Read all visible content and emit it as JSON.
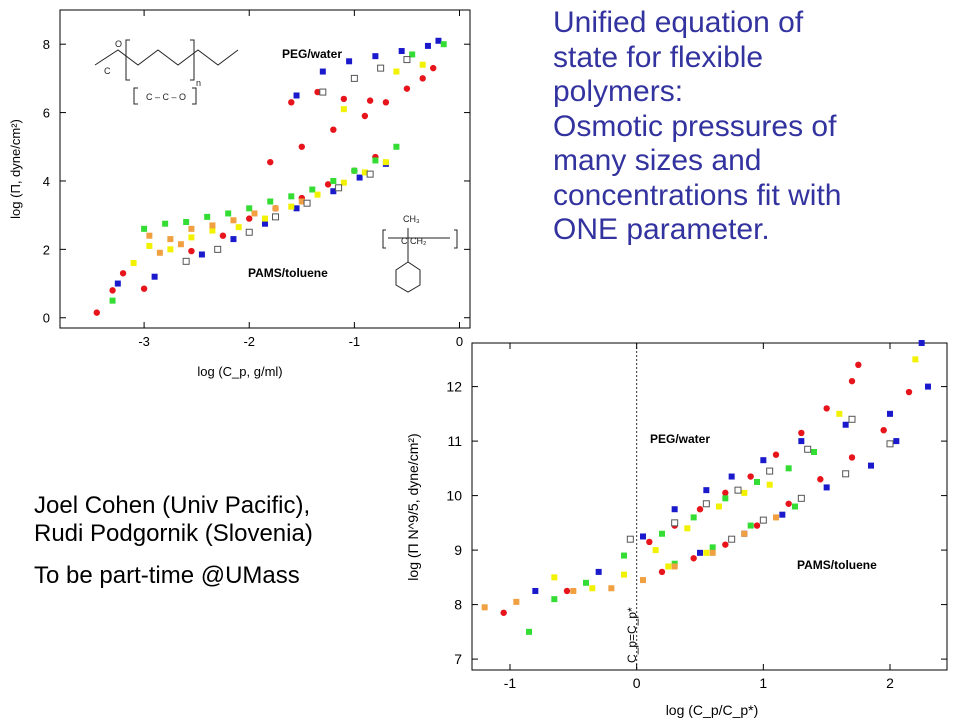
{
  "headline": {
    "lines": [
      "Unified equation of",
      "state for flexible",
      "polymers:",
      "Osmotic pressures of",
      "many sizes and",
      "concentrations fit with",
      "ONE parameter."
    ]
  },
  "credits": {
    "authors": "Joel Cohen (Univ Pacific), Rudi Podgornik (Slovenia)",
    "note": "To be part-time @UMass"
  },
  "colors": {
    "headline": "#3333a0",
    "red": "#e8141c",
    "blue": "#1a1acc",
    "green": "#33dd33",
    "yellow": "#f2f200",
    "orange": "#f0a040",
    "open_square": "#555555"
  },
  "chart_data": [
    {
      "type": "scatter",
      "title": "",
      "xlabel": "log (C_p, g/ml)",
      "ylabel": "log (Π, dyne/cm²)",
      "xlim": [
        -3.8,
        0.1
      ],
      "ylim": [
        -0.3,
        9
      ],
      "xticks": [
        "-3",
        "-2",
        "-1",
        "0"
      ],
      "yticks": [
        "0",
        "2",
        "4",
        "6",
        "8"
      ],
      "grid": false,
      "annotations": [
        "PEG/water",
        "PAMS/toluene"
      ],
      "molecule_labels": [
        "C",
        "O",
        "n",
        "C – C – O",
        "CH₃",
        "C CH₂"
      ],
      "series": [
        {
          "color": "red",
          "marker": "circle",
          "points": [
            [
              -3.45,
              0.15
            ],
            [
              -3.3,
              0.8
            ],
            [
              -3.2,
              1.3
            ],
            [
              -3.0,
              0.85
            ],
            [
              -2.55,
              1.95
            ],
            [
              -2.25,
              2.4
            ],
            [
              -2.0,
              2.9
            ],
            [
              -1.75,
              3.2
            ],
            [
              -1.5,
              3.5
            ],
            [
              -1.25,
              3.9
            ],
            [
              -1.0,
              4.3
            ],
            [
              -0.8,
              4.7
            ],
            [
              -1.8,
              4.55
            ],
            [
              -1.5,
              5.0
            ],
            [
              -1.2,
              5.5
            ],
            [
              -0.9,
              5.9
            ],
            [
              -0.7,
              6.3
            ],
            [
              -0.5,
              6.7
            ],
            [
              -0.35,
              7.0
            ],
            [
              -0.25,
              7.3
            ],
            [
              -1.6,
              6.3
            ],
            [
              -1.35,
              6.6
            ],
            [
              -1.1,
              6.4
            ],
            [
              -0.85,
              6.35
            ]
          ]
        },
        {
          "color": "blue",
          "marker": "square",
          "points": [
            [
              -3.25,
              1.0
            ],
            [
              -2.9,
              1.2
            ],
            [
              -2.45,
              1.85
            ],
            [
              -2.15,
              2.3
            ],
            [
              -1.85,
              2.75
            ],
            [
              -1.55,
              3.2
            ],
            [
              -1.2,
              3.7
            ],
            [
              -0.95,
              4.1
            ],
            [
              -0.7,
              4.5
            ],
            [
              -1.55,
              6.5
            ],
            [
              -1.3,
              7.2
            ],
            [
              -1.05,
              7.5
            ],
            [
              -0.8,
              7.65
            ],
            [
              -0.55,
              7.8
            ],
            [
              -0.3,
              7.95
            ],
            [
              -0.2,
              8.1
            ]
          ]
        },
        {
          "color": "green",
          "marker": "square",
          "points": [
            [
              -3.0,
              2.6
            ],
            [
              -2.8,
              2.75
            ],
            [
              -2.6,
              2.8
            ],
            [
              -2.4,
              2.95
            ],
            [
              -2.2,
              3.05
            ],
            [
              -2.0,
              3.2
            ],
            [
              -1.8,
              3.4
            ],
            [
              -1.6,
              3.55
            ],
            [
              -1.4,
              3.75
            ],
            [
              -1.2,
              4.0
            ],
            [
              -1.0,
              4.3
            ],
            [
              -0.8,
              4.6
            ],
            [
              -0.6,
              5.0
            ],
            [
              -3.3,
              0.5
            ],
            [
              -0.15,
              8.0
            ],
            [
              -0.45,
              7.7
            ],
            [
              -1.0,
              7.0
            ]
          ]
        },
        {
          "color": "yellow",
          "marker": "square",
          "points": [
            [
              -3.1,
              1.6
            ],
            [
              -2.95,
              2.1
            ],
            [
              -2.75,
              2.0
            ],
            [
              -2.55,
              2.35
            ],
            [
              -2.35,
              2.55
            ],
            [
              -2.1,
              2.65
            ],
            [
              -1.85,
              2.9
            ],
            [
              -1.6,
              3.25
            ],
            [
              -1.35,
              3.6
            ],
            [
              -1.1,
              3.95
            ],
            [
              -0.9,
              4.25
            ],
            [
              -0.7,
              4.55
            ],
            [
              -1.1,
              6.1
            ],
            [
              -0.6,
              7.2
            ],
            [
              -0.35,
              7.4
            ]
          ]
        },
        {
          "color": "orange",
          "marker": "square",
          "points": [
            [
              -2.95,
              2.4
            ],
            [
              -2.75,
              2.3
            ],
            [
              -2.55,
              2.6
            ],
            [
              -2.35,
              2.7
            ],
            [
              -2.15,
              2.85
            ],
            [
              -1.95,
              3.05
            ],
            [
              -1.75,
              3.2
            ],
            [
              -1.5,
              3.4
            ],
            [
              -2.85,
              1.9
            ],
            [
              -2.65,
              2.15
            ]
          ]
        },
        {
          "color": "open_square",
          "marker": "open-square",
          "points": [
            [
              -2.6,
              1.65
            ],
            [
              -2.3,
              2.0
            ],
            [
              -2.0,
              2.5
            ],
            [
              -1.75,
              2.95
            ],
            [
              -1.45,
              3.35
            ],
            [
              -1.15,
              3.8
            ],
            [
              -0.85,
              4.2
            ],
            [
              -1.3,
              6.6
            ],
            [
              -1.0,
              7.0
            ],
            [
              -0.75,
              7.3
            ],
            [
              -0.5,
              7.55
            ]
          ]
        }
      ]
    },
    {
      "type": "scatter",
      "title": "",
      "xlabel": "log (C_p/C_p*)",
      "ylabel": "log (Π N^9/5, dyne/cm²)",
      "xlim": [
        -1.3,
        2.45
      ],
      "ylim": [
        6.8,
        12.8
      ],
      "xticks": [
        "-1",
        "0",
        "1",
        "2"
      ],
      "yticks": [
        "7",
        "8",
        "9",
        "10",
        "11",
        "12"
      ],
      "grid": false,
      "annotations": [
        "PEG/water",
        "PAMS/toluene",
        "C_p=C_p*"
      ],
      "vline_at": 0,
      "series": [
        {
          "color": "red",
          "marker": "circle",
          "points": [
            [
              -1.05,
              7.85
            ],
            [
              -0.55,
              8.25
            ],
            [
              0.1,
              9.15
            ],
            [
              0.3,
              9.45
            ],
            [
              0.5,
              9.75
            ],
            [
              0.7,
              10.05
            ],
            [
              0.9,
              10.35
            ],
            [
              1.1,
              10.75
            ],
            [
              1.3,
              11.15
            ],
            [
              1.5,
              11.6
            ],
            [
              1.7,
              12.1
            ],
            [
              1.75,
              12.4
            ],
            [
              0.2,
              8.6
            ],
            [
              0.45,
              8.85
            ],
            [
              0.7,
              9.1
            ],
            [
              0.95,
              9.45
            ],
            [
              1.2,
              9.85
            ],
            [
              1.45,
              10.3
            ],
            [
              1.7,
              10.7
            ],
            [
              1.95,
              11.2
            ],
            [
              2.15,
              11.9
            ]
          ]
        },
        {
          "color": "blue",
          "marker": "square",
          "points": [
            [
              -0.8,
              8.25
            ],
            [
              -0.3,
              8.6
            ],
            [
              0.05,
              9.25
            ],
            [
              0.3,
              9.75
            ],
            [
              0.55,
              10.1
            ],
            [
              0.75,
              10.35
            ],
            [
              1.0,
              10.65
            ],
            [
              1.3,
              11.0
            ],
            [
              1.65,
              11.3
            ],
            [
              2.0,
              11.5
            ],
            [
              2.3,
              12.0
            ],
            [
              2.25,
              12.8
            ],
            [
              0.5,
              8.95
            ],
            [
              0.85,
              9.3
            ],
            [
              1.15,
              9.65
            ],
            [
              1.5,
              10.15
            ],
            [
              1.85,
              10.55
            ],
            [
              2.05,
              11.0
            ]
          ]
        },
        {
          "color": "green",
          "marker": "square",
          "points": [
            [
              -0.85,
              7.5
            ],
            [
              -0.65,
              8.1
            ],
            [
              -0.4,
              8.4
            ],
            [
              -0.1,
              8.9
            ],
            [
              0.2,
              9.3
            ],
            [
              0.45,
              9.6
            ],
            [
              0.7,
              9.95
            ],
            [
              0.95,
              10.25
            ],
            [
              1.2,
              10.5
            ],
            [
              1.4,
              10.8
            ],
            [
              0.3,
              8.75
            ],
            [
              0.6,
              9.05
            ],
            [
              0.9,
              9.45
            ],
            [
              1.25,
              9.8
            ]
          ]
        },
        {
          "color": "yellow",
          "marker": "square",
          "points": [
            [
              -0.65,
              8.5
            ],
            [
              -0.35,
              8.3
            ],
            [
              -0.1,
              8.55
            ],
            [
              0.15,
              9.0
            ],
            [
              0.4,
              9.4
            ],
            [
              0.65,
              9.8
            ],
            [
              0.85,
              10.05
            ],
            [
              1.05,
              10.2
            ],
            [
              1.6,
              11.5
            ],
            [
              0.25,
              8.7
            ],
            [
              0.55,
              8.95
            ],
            [
              2.2,
              12.5
            ]
          ]
        },
        {
          "color": "orange",
          "marker": "square",
          "points": [
            [
              -1.2,
              7.95
            ],
            [
              -0.95,
              8.05
            ],
            [
              -0.5,
              8.25
            ],
            [
              -0.2,
              8.3
            ],
            [
              0.05,
              8.45
            ],
            [
              0.3,
              8.7
            ],
            [
              0.6,
              8.95
            ],
            [
              0.85,
              9.3
            ],
            [
              1.1,
              9.6
            ]
          ]
        },
        {
          "color": "open_square",
          "marker": "open-square",
          "points": [
            [
              -0.05,
              9.2
            ],
            [
              0.3,
              9.5
            ],
            [
              0.55,
              9.85
            ],
            [
              0.8,
              10.1
            ],
            [
              1.05,
              10.45
            ],
            [
              1.35,
              10.85
            ],
            [
              1.7,
              11.4
            ],
            [
              0.75,
              9.2
            ],
            [
              1.0,
              9.55
            ],
            [
              1.3,
              9.95
            ],
            [
              1.65,
              10.4
            ],
            [
              2.0,
              10.95
            ]
          ]
        }
      ]
    }
  ]
}
